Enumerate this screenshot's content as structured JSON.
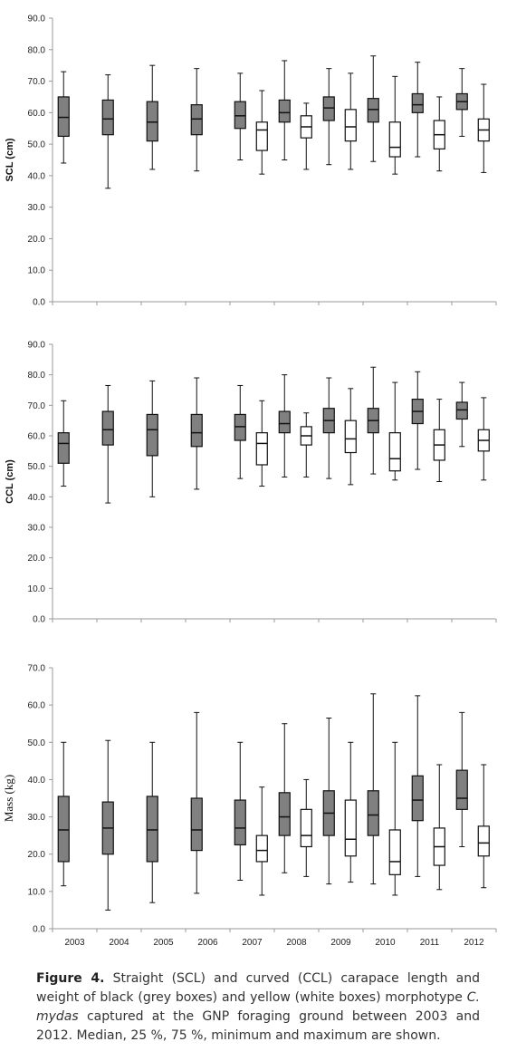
{
  "chart_data": [
    {
      "type": "boxplot",
      "ylabel": "SCL (cm)",
      "ylim": [
        0,
        90
      ],
      "yticks": [
        "0.0",
        "10.0",
        "20.0",
        "30.0",
        "40.0",
        "50.0",
        "60.0",
        "70.0",
        "80.0",
        "90.0"
      ],
      "boxes": [
        {
          "x": "2003",
          "group": "black",
          "min": 44,
          "q1": 52.5,
          "median": 58.5,
          "q3": 65,
          "max": 73
        },
        {
          "x": "2004",
          "group": "black",
          "min": 36,
          "q1": 53,
          "median": 58,
          "q3": 64,
          "max": 72
        },
        {
          "x": "2005",
          "group": "black",
          "min": 42,
          "q1": 51,
          "median": 57,
          "q3": 63.5,
          "max": 75
        },
        {
          "x": "2006",
          "group": "black",
          "min": 41.5,
          "q1": 53,
          "median": 58,
          "q3": 62.5,
          "max": 74
        },
        {
          "x": "2007",
          "group": "black",
          "min": 45,
          "q1": 55,
          "median": 59,
          "q3": 63.5,
          "max": 72.5
        },
        {
          "x": "2007",
          "group": "yellow",
          "min": 40.5,
          "q1": 48,
          "median": 54.5,
          "q3": 57,
          "max": 67
        },
        {
          "x": "2008",
          "group": "black",
          "min": 45,
          "q1": 57,
          "median": 60,
          "q3": 64,
          "max": 76.5
        },
        {
          "x": "2008",
          "group": "yellow",
          "min": 42,
          "q1": 52,
          "median": 55.5,
          "q3": 59,
          "max": 63
        },
        {
          "x": "2009",
          "group": "black",
          "min": 43.5,
          "q1": 57.5,
          "median": 61.5,
          "q3": 65,
          "max": 74
        },
        {
          "x": "2009",
          "group": "yellow",
          "min": 42,
          "q1": 51,
          "median": 55.5,
          "q3": 61,
          "max": 72.5
        },
        {
          "x": "2010",
          "group": "black",
          "min": 44.5,
          "q1": 57,
          "median": 61,
          "q3": 64.5,
          "max": 78
        },
        {
          "x": "2010",
          "group": "yellow",
          "min": 40.5,
          "q1": 46,
          "median": 49,
          "q3": 57,
          "max": 71.5
        },
        {
          "x": "2011",
          "group": "black",
          "min": 46,
          "q1": 60,
          "median": 62.5,
          "q3": 66,
          "max": 76
        },
        {
          "x": "2011",
          "group": "yellow",
          "min": 41.5,
          "q1": 48.5,
          "median": 53,
          "q3": 57.5,
          "max": 65
        },
        {
          "x": "2012",
          "group": "black",
          "min": 52.5,
          "q1": 61,
          "median": 63.5,
          "q3": 66,
          "max": 74
        },
        {
          "x": "2012",
          "group": "yellow",
          "min": 41,
          "q1": 51,
          "median": 54.5,
          "q3": 58,
          "max": 69
        }
      ]
    },
    {
      "type": "boxplot",
      "ylabel": "CCL (cm)",
      "ylim": [
        0,
        90
      ],
      "yticks": [
        "0.0",
        "10.0",
        "20.0",
        "30.0",
        "40.0",
        "50.0",
        "60.0",
        "70.0",
        "80.0",
        "90.0"
      ],
      "boxes": [
        {
          "x": "2003",
          "group": "black",
          "min": 43.5,
          "q1": 51,
          "median": 57.5,
          "q3": 61,
          "max": 71.5
        },
        {
          "x": "2004",
          "group": "black",
          "min": 38,
          "q1": 57,
          "median": 62,
          "q3": 68,
          "max": 76.5
        },
        {
          "x": "2005",
          "group": "black",
          "min": 40,
          "q1": 53.5,
          "median": 62,
          "q3": 67,
          "max": 78
        },
        {
          "x": "2006",
          "group": "black",
          "min": 42.5,
          "q1": 56.5,
          "median": 61,
          "q3": 67,
          "max": 79
        },
        {
          "x": "2007",
          "group": "black",
          "min": 46,
          "q1": 58.5,
          "median": 63,
          "q3": 67,
          "max": 76.5
        },
        {
          "x": "2007",
          "group": "yellow",
          "min": 43.5,
          "q1": 50.5,
          "median": 57.5,
          "q3": 61,
          "max": 71.5
        },
        {
          "x": "2008",
          "group": "black",
          "min": 46.5,
          "q1": 61,
          "median": 64,
          "q3": 68,
          "max": 80
        },
        {
          "x": "2008",
          "group": "yellow",
          "min": 46.5,
          "q1": 57,
          "median": 60,
          "q3": 63,
          "max": 67.5
        },
        {
          "x": "2009",
          "group": "black",
          "min": 46,
          "q1": 61,
          "median": 65,
          "q3": 69,
          "max": 79
        },
        {
          "x": "2009",
          "group": "yellow",
          "min": 44,
          "q1": 54.5,
          "median": 59,
          "q3": 65,
          "max": 75.5
        },
        {
          "x": "2010",
          "group": "black",
          "min": 47.5,
          "q1": 61,
          "median": 65,
          "q3": 69,
          "max": 82.5
        },
        {
          "x": "2010",
          "group": "yellow",
          "min": 45.5,
          "q1": 48.5,
          "median": 52.5,
          "q3": 61,
          "max": 77.5
        },
        {
          "x": "2011",
          "group": "black",
          "min": 49,
          "q1": 64,
          "median": 68,
          "q3": 72,
          "max": 81
        },
        {
          "x": "2011",
          "group": "yellow",
          "min": 45,
          "q1": 52,
          "median": 57,
          "q3": 62,
          "max": 72
        },
        {
          "x": "2012",
          "group": "black",
          "min": 56.5,
          "q1": 65.5,
          "median": 68.5,
          "q3": 71,
          "max": 77.5
        },
        {
          "x": "2012",
          "group": "yellow",
          "min": 45.5,
          "q1": 55,
          "median": 58.5,
          "q3": 62,
          "max": 72.5
        }
      ]
    },
    {
      "type": "boxplot",
      "ylabel": "Mass (kg)",
      "ylim": [
        0,
        70
      ],
      "yticks": [
        "0.0",
        "10.0",
        "20.0",
        "30.0",
        "40.0",
        "50.0",
        "60.0",
        "70.0"
      ],
      "xticks": [
        "2003",
        "2004",
        "2005",
        "2006",
        "2007",
        "2008",
        "2009",
        "2010",
        "2011",
        "2012"
      ],
      "boxes": [
        {
          "x": "2003",
          "group": "black",
          "min": 11.5,
          "q1": 18,
          "median": 26.5,
          "q3": 35.5,
          "max": 50
        },
        {
          "x": "2004",
          "group": "black",
          "min": 5,
          "q1": 20,
          "median": 27,
          "q3": 34,
          "max": 50.5
        },
        {
          "x": "2005",
          "group": "black",
          "min": 7,
          "q1": 18,
          "median": 26.5,
          "q3": 35.5,
          "max": 50
        },
        {
          "x": "2006",
          "group": "black",
          "min": 9.5,
          "q1": 21,
          "median": 26.5,
          "q3": 35,
          "max": 58
        },
        {
          "x": "2007",
          "group": "black",
          "min": 13,
          "q1": 22.5,
          "median": 27,
          "q3": 34.5,
          "max": 50
        },
        {
          "x": "2007",
          "group": "yellow",
          "min": 9,
          "q1": 18,
          "median": 21,
          "q3": 25,
          "max": 38
        },
        {
          "x": "2008",
          "group": "black",
          "min": 15,
          "q1": 25,
          "median": 30,
          "q3": 36.5,
          "max": 55
        },
        {
          "x": "2008",
          "group": "yellow",
          "min": 14,
          "q1": 22,
          "median": 25,
          "q3": 32,
          "max": 40
        },
        {
          "x": "2009",
          "group": "black",
          "min": 12,
          "q1": 25,
          "median": 31,
          "q3": 37,
          "max": 56.5
        },
        {
          "x": "2009",
          "group": "yellow",
          "min": 12.5,
          "q1": 19.5,
          "median": 24,
          "q3": 34.5,
          "max": 50
        },
        {
          "x": "2010",
          "group": "black",
          "min": 12,
          "q1": 25,
          "median": 30.5,
          "q3": 37,
          "max": 63
        },
        {
          "x": "2010",
          "group": "yellow",
          "min": 9,
          "q1": 14.5,
          "median": 18,
          "q3": 26.5,
          "max": 50
        },
        {
          "x": "2011",
          "group": "black",
          "min": 14,
          "q1": 29,
          "median": 34.5,
          "q3": 41,
          "max": 62.5
        },
        {
          "x": "2011",
          "group": "yellow",
          "min": 10.5,
          "q1": 17,
          "median": 22,
          "q3": 27,
          "max": 44
        },
        {
          "x": "2012",
          "group": "black",
          "min": 22,
          "q1": 32,
          "median": 35,
          "q3": 42.5,
          "max": 58
        },
        {
          "x": "2012",
          "group": "yellow",
          "min": 11,
          "q1": 19.5,
          "median": 23,
          "q3": 27.5,
          "max": 44
        }
      ]
    }
  ],
  "colors": {
    "black_box": "#808080",
    "yellow_box": "#ffffff",
    "line": "#111111",
    "axis": "#999999"
  },
  "caption": {
    "label": "Figure 4.",
    "text_1": " Straight (SCL) and curved (CCL) carapace length and weight of black (grey boxes) and yellow (white boxes) morphotype ",
    "italic_1": "C. mydas",
    "text_2": " captured at the GNP foraging ground between 2003 and 2012. Median, 25 %, 75 %, minimum and maximum are shown."
  }
}
